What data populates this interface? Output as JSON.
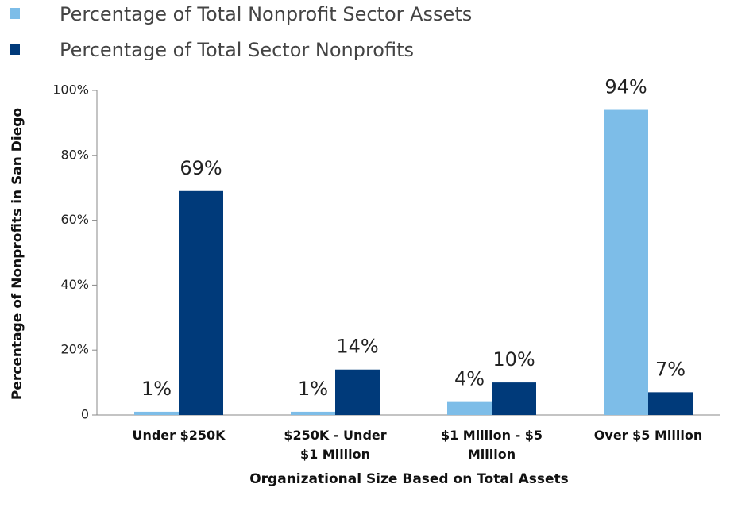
{
  "chart_data": {
    "type": "bar",
    "categories": [
      "Under $250K",
      "$250K - Under $1 Million",
      "$1 Million - $5 Million",
      "Over $5 Million"
    ],
    "series": [
      {
        "name": "Percentage of Total Nonprofit Sector Assets",
        "color": "#7dbde8",
        "values": [
          1,
          1,
          4,
          94
        ],
        "value_labels": [
          "1%",
          "1%",
          "4%",
          "94%"
        ]
      },
      {
        "name": "Percentage of Total Sector Nonprofits",
        "color": "#003a7a",
        "values": [
          69,
          14,
          10,
          7
        ],
        "value_labels": [
          "69%",
          "14%",
          "10%",
          "7%"
        ]
      }
    ],
    "ylim": [
      0,
      100
    ],
    "yticks": [
      0,
      {
        "value": 20,
        "label": "20%"
      },
      {
        "value": 40,
        "label": "40%"
      },
      {
        "value": 60,
        "label": "60%"
      },
      {
        "value": 80,
        "label": "80%"
      },
      {
        "value": 100,
        "label": "100%"
      }
    ],
    "y_label": "Percentage of Nonprofits in San Diego",
    "x_label": "Organizational Size Based on Total Assets",
    "legend": "top-left"
  }
}
